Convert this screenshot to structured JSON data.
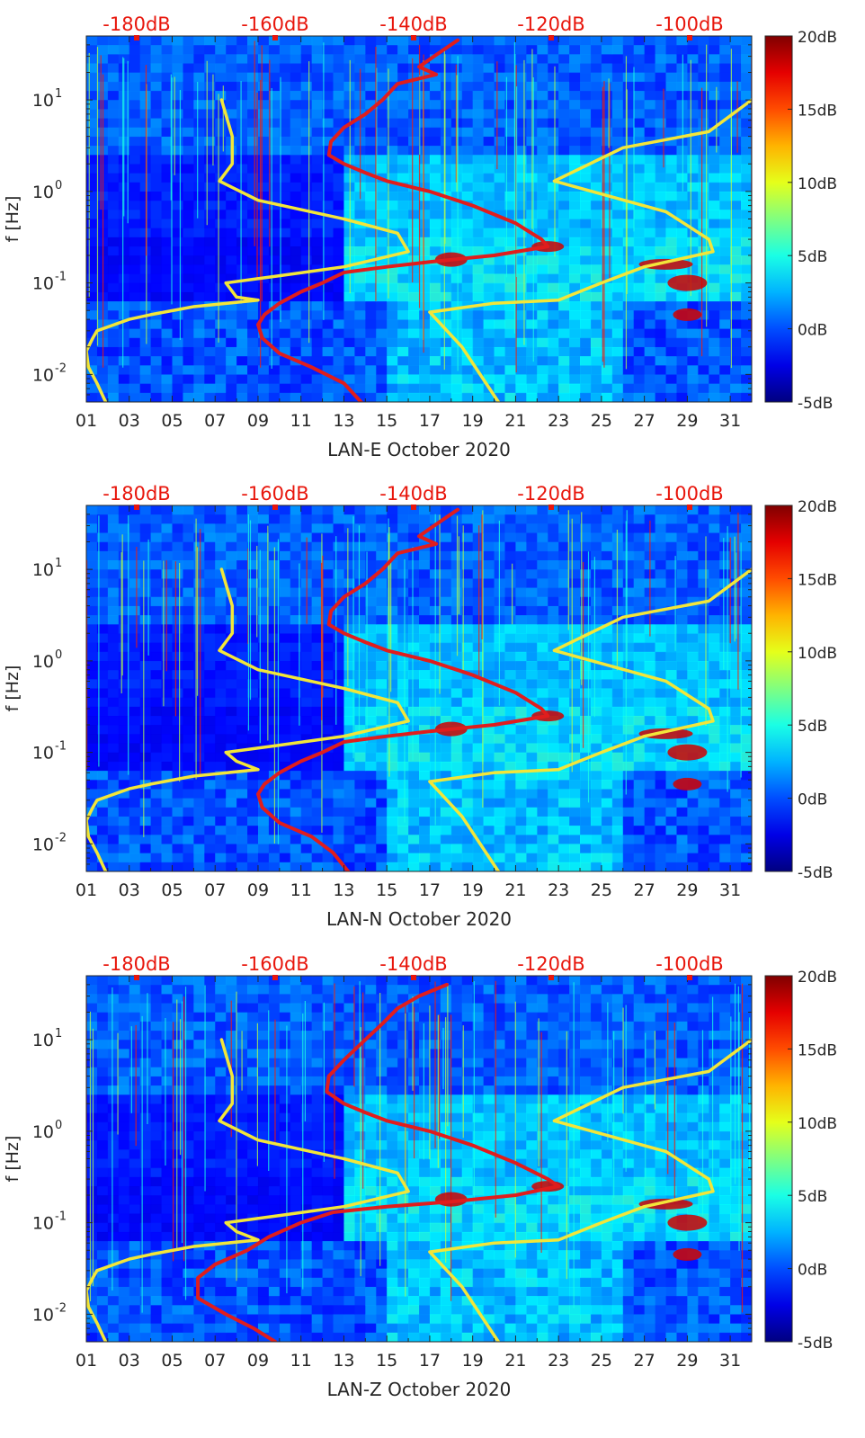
{
  "chart_data": [
    {
      "type": "heatmap",
      "title": "",
      "xlabel": "LAN-E October 2020",
      "ylabel": "f [Hz]",
      "xticks": [
        "01",
        "03",
        "05",
        "07",
        "09",
        "11",
        "13",
        "15",
        "17",
        "19",
        "21",
        "23",
        "25",
        "27",
        "29",
        "31"
      ],
      "xlim": [
        1,
        32
      ],
      "ylim": [
        0.005,
        50
      ],
      "yscale": "log",
      "yticks": [
        {
          "label": "10",
          "exp": "-2",
          "value": 0.01
        },
        {
          "label": "10",
          "exp": "-1",
          "value": 0.1
        },
        {
          "label": "10",
          "exp": "0",
          "value": 1
        },
        {
          "label": "10",
          "exp": "1",
          "value": 10
        }
      ],
      "top_axis": {
        "labels": [
          "-180dB",
          "-160dB",
          "-140dB",
          "-120dB",
          "-100dB"
        ],
        "values": [
          -180,
          -160,
          -140,
          -120,
          -100
        ]
      },
      "colorbar": {
        "labels": [
          "20dB",
          "15dB",
          "10dB",
          "5dB",
          "0dB",
          "-5dB"
        ],
        "values": [
          20,
          15,
          10,
          5,
          0,
          -5
        ],
        "colormap": "jet"
      },
      "series": [
        {
          "color": "#f2e63a",
          "points": [
            [
              7.3,
              10
            ],
            [
              7.8,
              4
            ],
            [
              7.8,
              2
            ],
            [
              7.2,
              1.3
            ],
            [
              9,
              0.8
            ],
            [
              13,
              0.5
            ],
            [
              15.5,
              0.35
            ],
            [
              16,
              0.22
            ],
            [
              13,
              0.15
            ],
            [
              10,
              0.12
            ],
            [
              7.5,
              0.1
            ],
            [
              8,
              0.07
            ],
            [
              9,
              0.065
            ],
            [
              6,
              0.055
            ],
            [
              4,
              0.045
            ],
            [
              3,
              0.04
            ],
            [
              1.5,
              0.03
            ],
            [
              1.3,
              0.025
            ],
            [
              1,
              0.018
            ],
            [
              1.1,
              0.012
            ],
            [
              1.5,
              0.008
            ],
            [
              1.9,
              0.005
            ]
          ]
        },
        {
          "color": "#e01d1d",
          "points": [
            [
              18.3,
              45
            ],
            [
              17.2,
              30
            ],
            [
              16.5,
              23
            ],
            [
              17.3,
              19
            ],
            [
              15.5,
              15
            ],
            [
              14.8,
              10
            ],
            [
              14,
              7
            ],
            [
              13,
              5
            ],
            [
              12.4,
              3.5
            ],
            [
              12.3,
              2.5
            ],
            [
              13,
              2
            ],
            [
              14,
              1.6
            ],
            [
              15,
              1.3
            ],
            [
              17,
              1
            ],
            [
              19,
              0.7
            ],
            [
              21,
              0.45
            ],
            [
              22.2,
              0.3
            ],
            [
              22.5,
              0.25
            ],
            [
              20,
              0.2
            ],
            [
              17,
              0.17
            ],
            [
              15,
              0.15
            ],
            [
              13,
              0.13
            ],
            [
              12,
              0.1
            ],
            [
              11,
              0.08
            ],
            [
              10,
              0.06
            ],
            [
              9.3,
              0.045
            ],
            [
              9.0,
              0.035
            ],
            [
              9.2,
              0.025
            ],
            [
              10,
              0.017
            ],
            [
              11.5,
              0.012
            ],
            [
              13,
              0.008
            ],
            [
              13.8,
              0.005
            ]
          ]
        },
        {
          "color": "#f2e63a",
          "points": [
            [
              32,
              10
            ],
            [
              30,
              4.5
            ],
            [
              26,
              3
            ],
            [
              22.8,
              1.3
            ],
            [
              28,
              0.6
            ],
            [
              30,
              0.3
            ],
            [
              30.2,
              0.22
            ],
            [
              27,
              0.15
            ],
            [
              25,
              0.1
            ],
            [
              23,
              0.065
            ],
            [
              20,
              0.06
            ],
            [
              17,
              0.048
            ],
            [
              18.5,
              0.02
            ],
            [
              20.2,
              0.005
            ]
          ]
        }
      ]
    },
    {
      "type": "heatmap",
      "title": "",
      "xlabel": "LAN-N October 2020",
      "ylabel": "f [Hz]",
      "xticks": [
        "01",
        "03",
        "05",
        "07",
        "09",
        "11",
        "13",
        "15",
        "17",
        "19",
        "21",
        "23",
        "25",
        "27",
        "29",
        "31"
      ],
      "xlim": [
        1,
        32
      ],
      "ylim": [
        0.005,
        50
      ],
      "yscale": "log",
      "yticks": [
        {
          "label": "10",
          "exp": "-2",
          "value": 0.01
        },
        {
          "label": "10",
          "exp": "-1",
          "value": 0.1
        },
        {
          "label": "10",
          "exp": "0",
          "value": 1
        },
        {
          "label": "10",
          "exp": "1",
          "value": 10
        }
      ],
      "top_axis": {
        "labels": [
          "-180dB",
          "-160dB",
          "-140dB",
          "-120dB",
          "-100dB"
        ],
        "values": [
          -180,
          -160,
          -140,
          -120,
          -100
        ]
      },
      "colorbar": {
        "labels": [
          "20dB",
          "15dB",
          "10dB",
          "5dB",
          "0dB",
          "-5dB"
        ],
        "values": [
          20,
          15,
          10,
          5,
          0,
          -5
        ],
        "colormap": "jet"
      },
      "series": [
        {
          "color": "#f2e63a",
          "points": [
            [
              7.3,
              10
            ],
            [
              7.8,
              4
            ],
            [
              7.8,
              2
            ],
            [
              7.2,
              1.3
            ],
            [
              9,
              0.8
            ],
            [
              13,
              0.5
            ],
            [
              15.5,
              0.35
            ],
            [
              16,
              0.22
            ],
            [
              13,
              0.15
            ],
            [
              10,
              0.12
            ],
            [
              7.5,
              0.1
            ],
            [
              8,
              0.08
            ],
            [
              9,
              0.065
            ],
            [
              6,
              0.055
            ],
            [
              4,
              0.045
            ],
            [
              3,
              0.04
            ],
            [
              1.5,
              0.03
            ],
            [
              1.3,
              0.025
            ],
            [
              1,
              0.018
            ],
            [
              1.1,
              0.012
            ],
            [
              1.5,
              0.008
            ],
            [
              1.9,
              0.005
            ]
          ]
        },
        {
          "color": "#e01d1d",
          "points": [
            [
              18.3,
              45
            ],
            [
              17.2,
              30
            ],
            [
              16.5,
              23
            ],
            [
              17.3,
              19
            ],
            [
              15.5,
              15
            ],
            [
              14.8,
              10
            ],
            [
              14,
              7
            ],
            [
              13,
              5
            ],
            [
              12.4,
              3.5
            ],
            [
              12.3,
              2.5
            ],
            [
              13,
              2
            ],
            [
              14,
              1.6
            ],
            [
              15,
              1.3
            ],
            [
              17,
              1
            ],
            [
              19,
              0.7
            ],
            [
              21,
              0.45
            ],
            [
              22.2,
              0.3
            ],
            [
              22.5,
              0.25
            ],
            [
              20,
              0.2
            ],
            [
              17,
              0.17
            ],
            [
              15,
              0.15
            ],
            [
              13,
              0.13
            ],
            [
              12,
              0.1
            ],
            [
              11,
              0.08
            ],
            [
              10,
              0.06
            ],
            [
              9.3,
              0.045
            ],
            [
              9.0,
              0.035
            ],
            [
              9.2,
              0.025
            ],
            [
              10,
              0.017
            ],
            [
              11.5,
              0.012
            ],
            [
              12.5,
              0.008
            ],
            [
              13.2,
              0.005
            ]
          ]
        },
        {
          "color": "#f2e63a",
          "points": [
            [
              32,
              10
            ],
            [
              30,
              4.5
            ],
            [
              26,
              3
            ],
            [
              22.8,
              1.3
            ],
            [
              28,
              0.6
            ],
            [
              30,
              0.3
            ],
            [
              30.2,
              0.22
            ],
            [
              27,
              0.15
            ],
            [
              25,
              0.1
            ],
            [
              23,
              0.065
            ],
            [
              20,
              0.06
            ],
            [
              17,
              0.048
            ],
            [
              18.5,
              0.02
            ],
            [
              20.2,
              0.005
            ]
          ]
        }
      ]
    },
    {
      "type": "heatmap",
      "title": "",
      "xlabel": "LAN-Z October 2020",
      "ylabel": "f [Hz]",
      "xticks": [
        "01",
        "03",
        "05",
        "07",
        "09",
        "11",
        "13",
        "15",
        "17",
        "19",
        "21",
        "23",
        "25",
        "27",
        "29",
        "31"
      ],
      "xlim": [
        1,
        32
      ],
      "ylim": [
        0.005,
        50
      ],
      "yscale": "log",
      "yticks": [
        {
          "label": "10",
          "exp": "-2",
          "value": 0.01
        },
        {
          "label": "10",
          "exp": "-1",
          "value": 0.1
        },
        {
          "label": "10",
          "exp": "0",
          "value": 1
        },
        {
          "label": "10",
          "exp": "1",
          "value": 10
        }
      ],
      "top_axis": {
        "labels": [
          "-180dB",
          "-160dB",
          "-140dB",
          "-120dB",
          "-100dB"
        ],
        "values": [
          -180,
          -160,
          -140,
          -120,
          -100
        ]
      },
      "colorbar": {
        "labels": [
          "20dB",
          "15dB",
          "10dB",
          "5dB",
          "0dB",
          "-5dB"
        ],
        "values": [
          20,
          15,
          10,
          5,
          0,
          -5
        ],
        "colormap": "jet"
      },
      "series": [
        {
          "color": "#f2e63a",
          "points": [
            [
              7.3,
              10
            ],
            [
              7.8,
              4
            ],
            [
              7.8,
              2
            ],
            [
              7.2,
              1.3
            ],
            [
              9,
              0.8
            ],
            [
              13,
              0.5
            ],
            [
              15.5,
              0.35
            ],
            [
              16,
              0.22
            ],
            [
              13,
              0.15
            ],
            [
              10,
              0.12
            ],
            [
              7.5,
              0.1
            ],
            [
              8,
              0.08
            ],
            [
              9,
              0.065
            ],
            [
              6,
              0.055
            ],
            [
              4,
              0.045
            ],
            [
              3,
              0.04
            ],
            [
              1.5,
              0.03
            ],
            [
              1.3,
              0.025
            ],
            [
              1,
              0.018
            ],
            [
              1.1,
              0.012
            ],
            [
              1.5,
              0.008
            ],
            [
              1.9,
              0.005
            ]
          ]
        },
        {
          "color": "#e01d1d",
          "points": [
            [
              17.8,
              40
            ],
            [
              16.5,
              30
            ],
            [
              15.5,
              22
            ],
            [
              14.8,
              15
            ],
            [
              14,
              10
            ],
            [
              13,
              6
            ],
            [
              12.3,
              4
            ],
            [
              12.2,
              2.7
            ],
            [
              13,
              2
            ],
            [
              14,
              1.6
            ],
            [
              15,
              1.3
            ],
            [
              17,
              1
            ],
            [
              19,
              0.7
            ],
            [
              21,
              0.45
            ],
            [
              22.5,
              0.3
            ],
            [
              23,
              0.25
            ],
            [
              21,
              0.2
            ],
            [
              18,
              0.17
            ],
            [
              15,
              0.15
            ],
            [
              12.5,
              0.13
            ],
            [
              11,
              0.1
            ],
            [
              9.5,
              0.07
            ],
            [
              8.5,
              0.05
            ],
            [
              7,
              0.035
            ],
            [
              6.2,
              0.025
            ],
            [
              6.2,
              0.015
            ],
            [
              7.5,
              0.01
            ],
            [
              8.8,
              0.007
            ],
            [
              9.8,
              0.005
            ]
          ]
        },
        {
          "color": "#f2e63a",
          "points": [
            [
              32,
              10
            ],
            [
              30,
              4.5
            ],
            [
              26,
              3
            ],
            [
              22.8,
              1.3
            ],
            [
              28,
              0.6
            ],
            [
              30,
              0.3
            ],
            [
              30.2,
              0.22
            ],
            [
              27,
              0.15
            ],
            [
              25,
              0.1
            ],
            [
              23,
              0.065
            ],
            [
              20,
              0.06
            ],
            [
              17,
              0.048
            ],
            [
              18.5,
              0.02
            ],
            [
              20.2,
              0.005
            ]
          ]
        }
      ]
    }
  ]
}
